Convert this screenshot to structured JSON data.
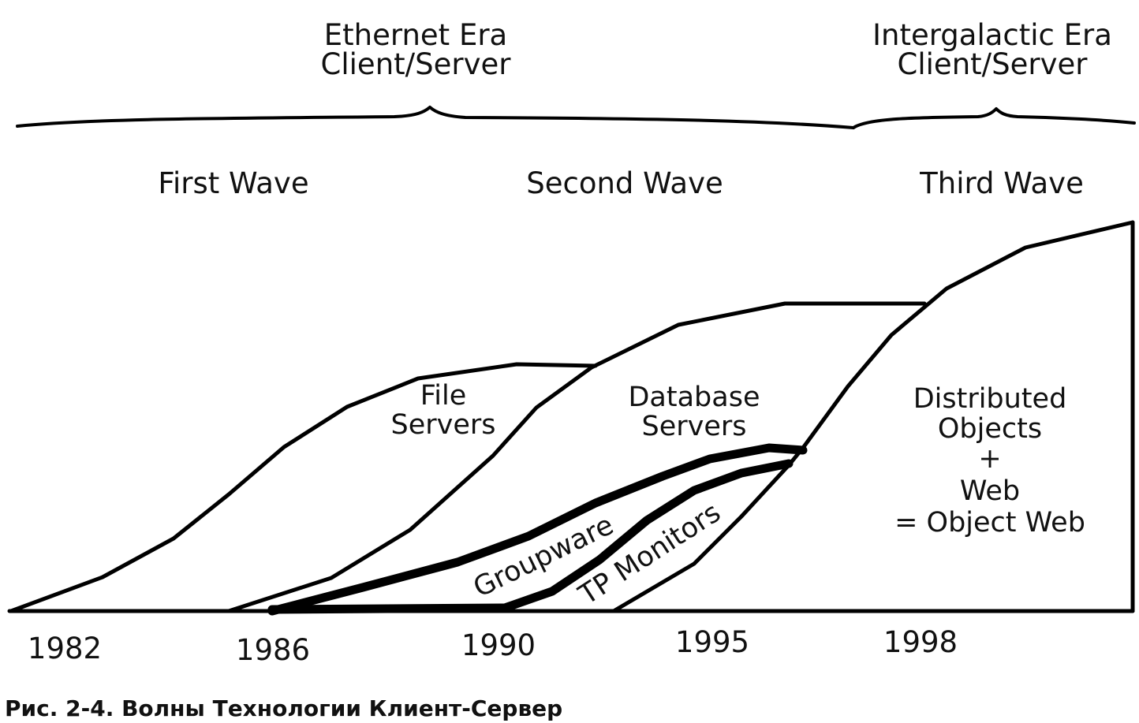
{
  "eras": [
    {
      "line1": "Ethernet Era",
      "line2": "Client/Server"
    },
    {
      "line1": "Intergalactic Era",
      "line2": "Client/Server"
    }
  ],
  "waves": [
    "First Wave",
    "Second Wave",
    "Third Wave"
  ],
  "regions": {
    "file_servers": {
      "line1": "File",
      "line2": "Servers"
    },
    "database_servers": {
      "line1": "Database",
      "line2": "Servers"
    },
    "groupware": "Groupware",
    "tp_monitors": "TP Monitors",
    "distributed": {
      "line1": "Distributed",
      "line2": "Objects",
      "line3": "+",
      "line4": "Web",
      "line5": "= Object Web"
    }
  },
  "years": [
    "1982",
    "1986",
    "1990",
    "1995",
    "1998"
  ],
  "caption": "Рис. 2-4. Волны Технологии Клиент-Сервер"
}
